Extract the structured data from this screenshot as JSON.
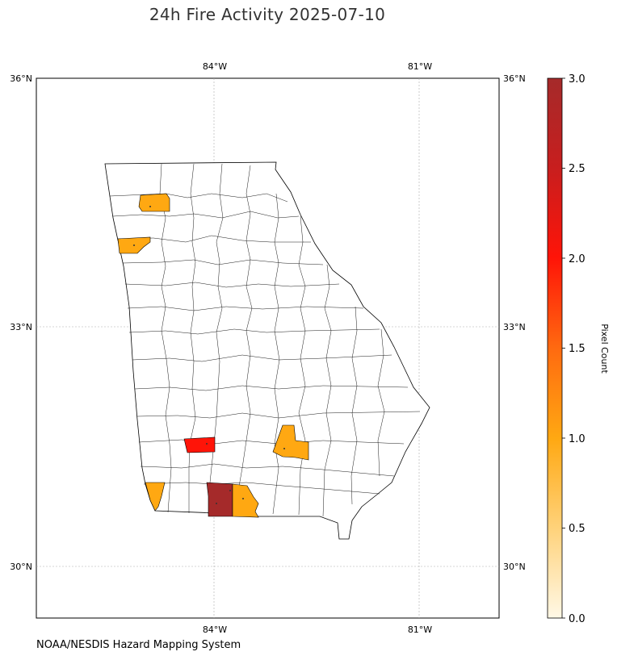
{
  "title": "24h Fire Activity 2025-07-10",
  "credit": "NOAA/NESDIS Hazard Mapping System",
  "map": {
    "lon_ticks": [
      "84°W",
      "81°W"
    ],
    "lat_ticks_left": [
      "36°N",
      "33°N",
      "30°N"
    ],
    "lat_ticks_right": [
      "36°N",
      "33°N",
      "30°N"
    ],
    "gridlines": true,
    "county_fill_colors": {
      "none": "#ffffff",
      "one": "#ffa812",
      "two": "#ff1408",
      "three": "#a52a2a"
    },
    "fire_counties": [
      {
        "pixel_count": 1,
        "area": "northwest"
      },
      {
        "pixel_count": 1,
        "area": "west-central"
      },
      {
        "pixel_count": 2,
        "area": "southwest"
      },
      {
        "pixel_count": 1,
        "area": "south-central"
      },
      {
        "pixel_count": 1,
        "area": "southwest corner"
      },
      {
        "pixel_count": 3,
        "area": "south"
      },
      {
        "pixel_count": 1,
        "area": "south"
      }
    ]
  },
  "colorbar": {
    "label": "Pixel Count",
    "ticks": [
      "3.0",
      "2.5",
      "2.0",
      "1.5",
      "1.0",
      "0.5",
      "0.0"
    ],
    "range": [
      0,
      3
    ],
    "colors": [
      "#fff8e6",
      "#ffd27a",
      "#ffa812",
      "#ff6a10",
      "#ff1408",
      "#c81e1e",
      "#a52a2a"
    ]
  }
}
